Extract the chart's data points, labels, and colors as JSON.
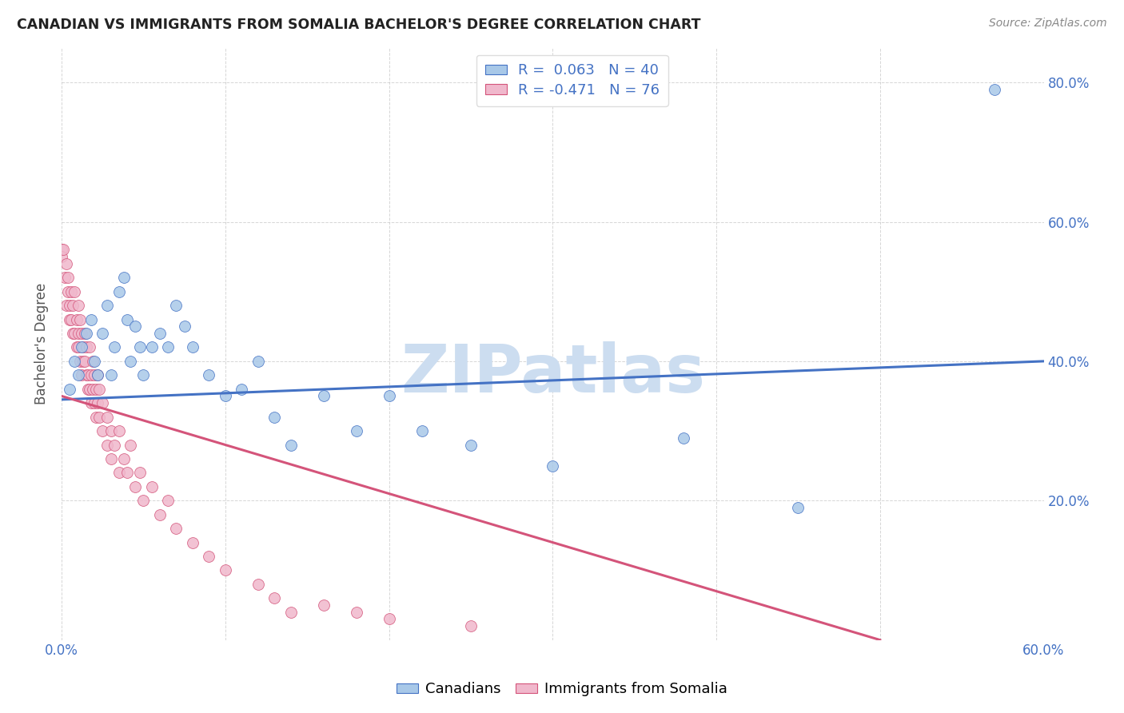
{
  "title": "CANADIAN VS IMMIGRANTS FROM SOMALIA BACHELOR'S DEGREE CORRELATION CHART",
  "source": "Source: ZipAtlas.com",
  "ylabel": "Bachelor's Degree",
  "watermark": "ZIPatlas",
  "canadians": {
    "R": 0.063,
    "N": 40,
    "x": [
      0.005,
      0.008,
      0.01,
      0.012,
      0.015,
      0.018,
      0.02,
      0.022,
      0.025,
      0.028,
      0.03,
      0.032,
      0.035,
      0.038,
      0.04,
      0.042,
      0.045,
      0.048,
      0.05,
      0.055,
      0.06,
      0.065,
      0.07,
      0.075,
      0.08,
      0.09,
      0.1,
      0.11,
      0.12,
      0.13,
      0.14,
      0.16,
      0.18,
      0.2,
      0.22,
      0.25,
      0.3,
      0.38,
      0.45,
      0.57
    ],
    "y": [
      0.36,
      0.4,
      0.38,
      0.42,
      0.44,
      0.46,
      0.4,
      0.38,
      0.44,
      0.48,
      0.38,
      0.42,
      0.5,
      0.52,
      0.46,
      0.4,
      0.45,
      0.42,
      0.38,
      0.42,
      0.44,
      0.42,
      0.48,
      0.45,
      0.42,
      0.38,
      0.35,
      0.36,
      0.4,
      0.32,
      0.28,
      0.35,
      0.3,
      0.35,
      0.3,
      0.28,
      0.25,
      0.29,
      0.19,
      0.79
    ]
  },
  "somalia": {
    "R": -0.471,
    "N": 76,
    "x": [
      0.0,
      0.0,
      0.001,
      0.002,
      0.003,
      0.003,
      0.004,
      0.004,
      0.005,
      0.005,
      0.006,
      0.006,
      0.007,
      0.007,
      0.008,
      0.008,
      0.009,
      0.009,
      0.01,
      0.01,
      0.01,
      0.011,
      0.011,
      0.012,
      0.012,
      0.013,
      0.013,
      0.014,
      0.014,
      0.015,
      0.015,
      0.016,
      0.016,
      0.017,
      0.017,
      0.018,
      0.018,
      0.019,
      0.019,
      0.02,
      0.02,
      0.021,
      0.021,
      0.022,
      0.022,
      0.023,
      0.023,
      0.025,
      0.025,
      0.028,
      0.028,
      0.03,
      0.03,
      0.032,
      0.035,
      0.035,
      0.038,
      0.04,
      0.042,
      0.045,
      0.048,
      0.05,
      0.055,
      0.06,
      0.065,
      0.07,
      0.08,
      0.09,
      0.1,
      0.12,
      0.13,
      0.14,
      0.16,
      0.18,
      0.2,
      0.25
    ],
    "y": [
      0.56,
      0.55,
      0.56,
      0.52,
      0.48,
      0.54,
      0.5,
      0.52,
      0.46,
      0.48,
      0.5,
      0.46,
      0.44,
      0.48,
      0.5,
      0.44,
      0.42,
      0.46,
      0.44,
      0.48,
      0.42,
      0.46,
      0.4,
      0.44,
      0.38,
      0.42,
      0.4,
      0.4,
      0.44,
      0.38,
      0.42,
      0.38,
      0.36,
      0.42,
      0.36,
      0.38,
      0.34,
      0.36,
      0.4,
      0.38,
      0.34,
      0.36,
      0.32,
      0.34,
      0.38,
      0.32,
      0.36,
      0.34,
      0.3,
      0.32,
      0.28,
      0.3,
      0.26,
      0.28,
      0.3,
      0.24,
      0.26,
      0.24,
      0.28,
      0.22,
      0.24,
      0.2,
      0.22,
      0.18,
      0.2,
      0.16,
      0.14,
      0.12,
      0.1,
      0.08,
      0.06,
      0.04,
      0.05,
      0.04,
      0.03,
      0.02
    ]
  },
  "xlim": [
    0.0,
    0.6
  ],
  "ylim": [
    0.0,
    0.85
  ],
  "xticks": [
    0.0,
    0.1,
    0.2,
    0.3,
    0.4,
    0.5,
    0.6
  ],
  "xtick_labels": [
    "0.0%",
    "",
    "",
    "",
    "",
    "",
    "60.0%"
  ],
  "yticks": [
    0.0,
    0.2,
    0.4,
    0.6,
    0.8
  ],
  "right_ytick_labels": [
    "",
    "20.0%",
    "40.0%",
    "60.0%",
    "80.0%"
  ],
  "legend_R1": "0.063",
  "legend_N1": "40",
  "legend_R2": "-0.471",
  "legend_N2": "76",
  "blue_color": "#4472c4",
  "pink_color": "#d4547a",
  "marker_blue": "#a8c8e8",
  "marker_pink": "#f0b8cc",
  "bg_color": "#ffffff",
  "watermark_color": "#ccddf0",
  "grid_color": "#cccccc",
  "trend_blue_x0": 0.0,
  "trend_blue_y0": 0.345,
  "trend_blue_x1": 0.6,
  "trend_blue_y1": 0.4,
  "trend_pink_x0": 0.0,
  "trend_pink_y0": 0.35,
  "trend_pink_x1": 0.5,
  "trend_pink_y1": 0.0
}
